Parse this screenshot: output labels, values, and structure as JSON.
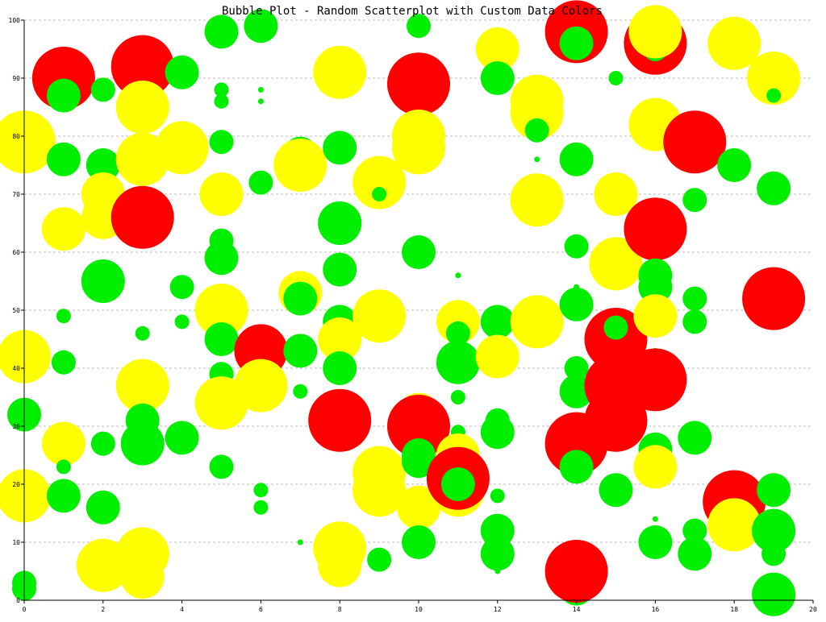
{
  "chart_data": {
    "type": "scatter",
    "title": "Bubble Plot - Random Scatterplot with Custom Data Colors",
    "xlabel": "",
    "ylabel": "",
    "xlim": [
      0,
      20
    ],
    "ylim": [
      0,
      100
    ],
    "x_ticks": [
      0,
      2,
      4,
      6,
      8,
      10,
      12,
      14,
      16,
      18,
      20
    ],
    "y_ticks": [
      0,
      10,
      20,
      30,
      40,
      50,
      60,
      70,
      80,
      90,
      100
    ],
    "grid": {
      "horizontal": true,
      "vertical": false,
      "style": "dotted"
    },
    "colors": {
      "low": "#00ee00",
      "mid": "#ffff00",
      "high": "#ff0000"
    },
    "points": [
      [
        0,
        2,
        2,
        "low"
      ],
      [
        0,
        3,
        2,
        "low"
      ],
      [
        0,
        18,
        5,
        "mid"
      ],
      [
        0,
        32,
        3,
        "low"
      ],
      [
        0,
        42,
        5,
        "mid"
      ],
      [
        0,
        80,
        1,
        "low"
      ],
      [
        0,
        79,
        6,
        "mid"
      ],
      [
        1,
        90,
        6,
        "high"
      ],
      [
        1,
        87,
        3,
        "low"
      ],
      [
        1,
        76,
        3,
        "low"
      ],
      [
        1,
        64,
        4,
        "mid"
      ],
      [
        1,
        49,
        1,
        "low"
      ],
      [
        1,
        41,
        2,
        "low"
      ],
      [
        1,
        27,
        4,
        "mid"
      ],
      [
        1,
        23,
        1,
        "low"
      ],
      [
        1,
        18,
        3,
        "low"
      ],
      [
        2,
        88,
        2,
        "low"
      ],
      [
        2,
        75,
        3,
        "low"
      ],
      [
        2,
        70,
        4,
        "mid"
      ],
      [
        2,
        66,
        4,
        "mid"
      ],
      [
        2,
        55,
        4,
        "low"
      ],
      [
        2,
        27,
        2,
        "low"
      ],
      [
        2,
        16,
        3,
        "low"
      ],
      [
        2,
        6,
        5,
        "mid"
      ],
      [
        3,
        92,
        6,
        "high"
      ],
      [
        3,
        85,
        5,
        "mid"
      ],
      [
        3,
        76,
        5,
        "mid"
      ],
      [
        3,
        66,
        6,
        "high"
      ],
      [
        3,
        46,
        1,
        "low"
      ],
      [
        3,
        37,
        5,
        "mid"
      ],
      [
        3,
        31,
        3,
        "low"
      ],
      [
        3,
        27,
        4,
        "low"
      ],
      [
        3,
        8,
        5,
        "mid"
      ],
      [
        3,
        4,
        4,
        "mid"
      ],
      [
        4,
        91,
        3,
        "low"
      ],
      [
        4,
        78,
        5,
        "mid"
      ],
      [
        4,
        54,
        2,
        "low"
      ],
      [
        4,
        48,
        1,
        "low"
      ],
      [
        4,
        28,
        3,
        "low"
      ],
      [
        5,
        98,
        3,
        "low"
      ],
      [
        5,
        88,
        1,
        "low"
      ],
      [
        5,
        86,
        1,
        "low"
      ],
      [
        5,
        79,
        2,
        "low"
      ],
      [
        5,
        70,
        4,
        "mid"
      ],
      [
        5,
        62,
        2,
        "low"
      ],
      [
        5,
        59,
        3,
        "low"
      ],
      [
        5,
        50,
        5,
        "mid"
      ],
      [
        5,
        45,
        3,
        "low"
      ],
      [
        5,
        39,
        2,
        "low"
      ],
      [
        5,
        34,
        5,
        "mid"
      ],
      [
        5,
        23,
        2,
        "low"
      ],
      [
        6,
        99,
        3,
        "low"
      ],
      [
        6,
        88,
        0.5,
        "low"
      ],
      [
        6,
        86,
        0.5,
        "low"
      ],
      [
        6,
        72,
        2,
        "low"
      ],
      [
        6,
        43,
        5,
        "high"
      ],
      [
        6,
        37,
        5,
        "mid"
      ],
      [
        6,
        19,
        1,
        "low"
      ],
      [
        6,
        16,
        1,
        "low"
      ],
      [
        7,
        77,
        3,
        "low"
      ],
      [
        7,
        75,
        5,
        "mid"
      ],
      [
        7,
        53,
        4,
        "mid"
      ],
      [
        7,
        52,
        3,
        "low"
      ],
      [
        7,
        43,
        3,
        "low"
      ],
      [
        7,
        36,
        1,
        "low"
      ],
      [
        7,
        10,
        0.5,
        "low"
      ],
      [
        8,
        91,
        5,
        "mid"
      ],
      [
        8,
        78,
        3,
        "low"
      ],
      [
        8,
        65,
        4,
        "low"
      ],
      [
        8,
        57,
        3,
        "low"
      ],
      [
        8,
        48,
        3,
        "low"
      ],
      [
        8,
        45,
        4,
        "mid"
      ],
      [
        8,
        40,
        3,
        "low"
      ],
      [
        8,
        31,
        6,
        "high"
      ],
      [
        8,
        9,
        5,
        "mid"
      ],
      [
        8,
        6,
        4,
        "mid"
      ],
      [
        9,
        72,
        5,
        "mid"
      ],
      [
        9,
        70,
        1,
        "low"
      ],
      [
        9,
        49,
        5,
        "mid"
      ],
      [
        9,
        22,
        5,
        "mid"
      ],
      [
        9,
        20,
        3,
        "low"
      ],
      [
        9,
        19,
        5,
        "mid"
      ],
      [
        9,
        7,
        2,
        "low"
      ],
      [
        10,
        99,
        2,
        "low"
      ],
      [
        10,
        89,
        6,
        "high"
      ],
      [
        10,
        80,
        5,
        "mid"
      ],
      [
        10,
        78,
        5,
        "mid"
      ],
      [
        10,
        60,
        3,
        "low"
      ],
      [
        10,
        32,
        4,
        "mid"
      ],
      [
        10,
        30,
        6,
        "high"
      ],
      [
        10,
        25,
        3,
        "low"
      ],
      [
        10,
        24,
        3,
        "low"
      ],
      [
        10,
        16,
        4,
        "mid"
      ],
      [
        10,
        10,
        3,
        "low"
      ],
      [
        11,
        56,
        0.5,
        "low"
      ],
      [
        11,
        48,
        4,
        "mid"
      ],
      [
        11,
        46,
        2,
        "low"
      ],
      [
        11,
        41,
        4,
        "low"
      ],
      [
        11,
        35,
        1,
        "low"
      ],
      [
        11,
        29,
        1,
        "low"
      ],
      [
        11,
        25,
        4,
        "mid"
      ],
      [
        11,
        19,
        5,
        "mid"
      ],
      [
        11,
        21,
        6,
        "high"
      ],
      [
        11,
        20,
        3,
        "low"
      ],
      [
        12,
        95,
        4,
        "mid"
      ],
      [
        12,
        90,
        3,
        "low"
      ],
      [
        12,
        48,
        3,
        "low"
      ],
      [
        12,
        42,
        4,
        "mid"
      ],
      [
        12,
        31,
        2,
        "low"
      ],
      [
        12,
        29,
        3,
        "low"
      ],
      [
        12,
        18,
        1,
        "low"
      ],
      [
        12,
        12,
        3,
        "low"
      ],
      [
        12,
        8,
        3,
        "low"
      ],
      [
        12,
        5,
        0.5,
        "low"
      ],
      [
        13,
        86,
        5,
        "mid"
      ],
      [
        13,
        84,
        5,
        "mid"
      ],
      [
        13,
        81,
        2,
        "low"
      ],
      [
        13,
        76,
        0.5,
        "low"
      ],
      [
        13,
        69,
        5,
        "mid"
      ],
      [
        13,
        48,
        5,
        "mid"
      ],
      [
        14,
        98,
        6,
        "high"
      ],
      [
        14,
        96,
        3,
        "low"
      ],
      [
        14,
        76,
        3,
        "low"
      ],
      [
        14,
        61,
        2,
        "low"
      ],
      [
        14,
        54,
        0.5,
        "low"
      ],
      [
        14,
        51,
        3,
        "low"
      ],
      [
        14,
        40,
        2,
        "low"
      ],
      [
        14,
        36,
        3,
        "low"
      ],
      [
        14,
        27,
        6,
        "high"
      ],
      [
        14,
        23,
        3,
        "low"
      ],
      [
        14,
        2,
        3,
        "low"
      ],
      [
        14,
        5,
        6,
        "high"
      ],
      [
        15,
        90,
        1,
        "low"
      ],
      [
        15,
        70,
        4,
        "mid"
      ],
      [
        15,
        58,
        5,
        "mid"
      ],
      [
        15,
        49,
        1,
        "low"
      ],
      [
        15,
        45,
        6,
        "high"
      ],
      [
        15,
        47,
        2,
        "low"
      ],
      [
        15,
        37,
        6,
        "high"
      ],
      [
        15,
        31,
        6,
        "high"
      ],
      [
        15,
        19,
        3,
        "low"
      ],
      [
        16,
        96,
        6,
        "high"
      ],
      [
        16,
        95,
        2,
        "low"
      ],
      [
        16,
        98,
        5,
        "mid"
      ],
      [
        16,
        82,
        5,
        "mid"
      ],
      [
        16,
        64,
        6,
        "high"
      ],
      [
        16,
        56,
        3,
        "low"
      ],
      [
        16,
        54,
        3,
        "low"
      ],
      [
        16,
        49,
        4,
        "mid"
      ],
      [
        16,
        43,
        0.5,
        "low"
      ],
      [
        16,
        38,
        6,
        "high"
      ],
      [
        16,
        26,
        3,
        "low"
      ],
      [
        16,
        23,
        4,
        "mid"
      ],
      [
        16,
        14,
        0.5,
        "low"
      ],
      [
        16,
        10,
        3,
        "low"
      ],
      [
        17,
        79,
        6,
        "high"
      ],
      [
        17,
        69,
        2,
        "low"
      ],
      [
        17,
        52,
        2,
        "low"
      ],
      [
        17,
        48,
        2,
        "low"
      ],
      [
        17,
        28,
        3,
        "low"
      ],
      [
        17,
        12,
        2,
        "low"
      ],
      [
        17,
        8,
        3,
        "low"
      ],
      [
        18,
        96,
        5,
        "mid"
      ],
      [
        18,
        75,
        3,
        "low"
      ],
      [
        18,
        17,
        6,
        "high"
      ],
      [
        18,
        13,
        5,
        "mid"
      ],
      [
        19,
        90,
        5,
        "mid"
      ],
      [
        19,
        87,
        1,
        "low"
      ],
      [
        19,
        71,
        3,
        "low"
      ],
      [
        19,
        52,
        6,
        "high"
      ],
      [
        19,
        19,
        3,
        "low"
      ],
      [
        19,
        12,
        4,
        "low"
      ],
      [
        19,
        8,
        2,
        "low"
      ],
      [
        19,
        1,
        4,
        "low"
      ]
    ]
  }
}
